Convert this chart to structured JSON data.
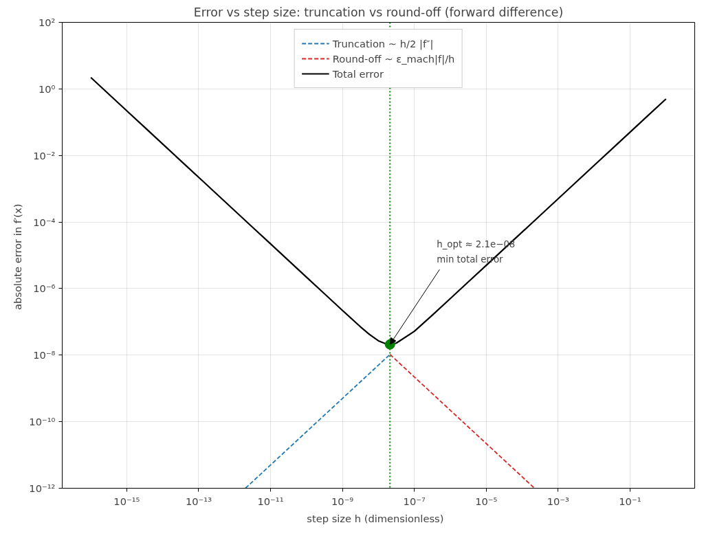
{
  "chart_data": {
    "type": "line",
    "title": "Error vs step size: truncation vs round-off (forward difference)",
    "xlabel": "step size  h  (dimensionless)",
    "ylabel": "absolute error in  f′(x)",
    "log": "xy",
    "xlim": [
      1.6e-17,
      6.3
    ],
    "ylim": [
      1e-12,
      100
    ],
    "xticks": [
      {
        "value": 1e-15,
        "label": "10⁻¹⁵"
      },
      {
        "value": 1e-13,
        "label": "10⁻¹³"
      },
      {
        "value": 1e-11,
        "label": "10⁻¹¹"
      },
      {
        "value": 1e-09,
        "label": "10⁻⁹"
      },
      {
        "value": 1e-07,
        "label": "10⁻⁷"
      },
      {
        "value": 1e-05,
        "label": "10⁻⁵"
      },
      {
        "value": 0.001,
        "label": "10⁻³"
      },
      {
        "value": 0.1,
        "label": "10⁻¹"
      }
    ],
    "yticks": [
      {
        "value": 1e-12,
        "label": "10⁻¹²"
      },
      {
        "value": 1e-10,
        "label": "10⁻¹⁰"
      },
      {
        "value": 1e-08,
        "label": "10⁻⁸"
      },
      {
        "value": 1e-06,
        "label": "10⁻⁶"
      },
      {
        "value": 0.0001,
        "label": "10⁻⁴"
      },
      {
        "value": 0.01,
        "label": "10⁻²"
      },
      {
        "value": 1,
        "label": "10⁰"
      },
      {
        "value": 100,
        "label": "10²"
      }
    ],
    "grid": true,
    "legend": "top",
    "series": [
      {
        "name": "Truncation ∼ h/2 |f″|",
        "color": "#1f77b4",
        "line_style": "dashed",
        "x": [
          2e-12,
          1e-10,
          1e-09,
          1e-08,
          2.1e-08
        ],
        "values": [
          1e-12,
          5e-11,
          5e-10,
          5e-09,
          1.05e-08
        ]
      },
      {
        "name": "Round-off ∼ ε_mach|f|/h",
        "color": "#d62728",
        "line_style": "dashed",
        "x": [
          2.1e-08,
          1e-07,
          1e-06,
          1e-05,
          0.0001,
          0.00022
        ],
        "values": [
          1.05e-08,
          2.2e-09,
          2.2e-10,
          2.2e-11,
          2.2e-12,
          1e-12
        ]
      },
      {
        "name": "Total error",
        "color": "#000000",
        "line_style": "solid",
        "x": [
          1e-16,
          3.16e-16,
          1e-15,
          3.16e-15,
          1e-14,
          3.16e-14,
          1e-13,
          3.16e-13,
          1e-12,
          3.16e-12,
          1e-11,
          3.16e-11,
          1e-10,
          3.16e-10,
          1e-09,
          3.16e-09,
          5.62e-09,
          1e-08,
          1.78e-08,
          2.1e-08,
          3.16e-08,
          1e-07,
          3.16e-07,
          1e-06,
          3.16e-06,
          1e-05,
          3.16e-05,
          0.0001,
          0.000316,
          0.001,
          0.00316,
          0.01,
          0.0316,
          0.1,
          0.316,
          1
        ],
        "values": [
          2.2,
          0.696,
          0.22,
          0.0696,
          0.022,
          0.00696,
          0.0022,
          0.000696,
          0.00022,
          6.96e-05,
          2.2e-05,
          6.96e-06,
          2.2e-06,
          6.96e-07,
          2.2e-07,
          7.1e-08,
          4.2e-08,
          2.7e-08,
          2.1e-08,
          2.1e-08,
          2.3e-08,
          5.2e-08,
          1.59e-07,
          5e-07,
          1.58e-06,
          5e-06,
          1.58e-05,
          5e-05,
          0.000158,
          0.0005,
          0.00158,
          0.005,
          0.0158,
          0.05,
          0.158,
          0.5
        ]
      },
      {
        "type": "scatter",
        "color": "#008000",
        "marker": "circle",
        "x": [
          2.1e-08
        ],
        "values": [
          2.1e-08
        ]
      }
    ],
    "ref_lines": [
      {
        "axis": "x",
        "value": 2.1e-08,
        "color": "#008000",
        "line_style": "dotted"
      }
    ],
    "annotations": [
      {
        "text": "h_opt ≈ 2.1e−08\nmin total error",
        "x": 2.1e-08,
        "y": 2.1e-08
      }
    ]
  }
}
